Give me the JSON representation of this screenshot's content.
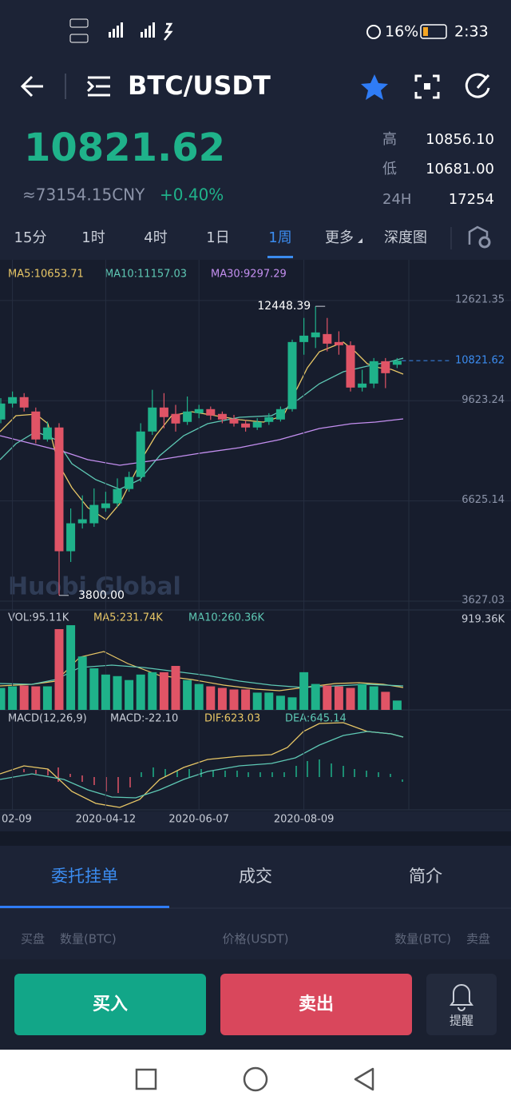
{
  "status_bar": {
    "battery": "16%",
    "time": "2:33"
  },
  "header": {
    "pair": "BTC/USDT"
  },
  "ticker": {
    "price": "10821.62",
    "cny": "≈73154.15CNY",
    "change": "+0.40%",
    "stats": [
      {
        "label": "高",
        "value": "10856.10"
      },
      {
        "label": "低",
        "value": "10681.00"
      },
      {
        "label": "24H",
        "value": "17254"
      }
    ]
  },
  "intervals": [
    "15分",
    "1时",
    "4时",
    "1日",
    "1周",
    "更多",
    "深度图"
  ],
  "active_interval": 4,
  "chart_data": {
    "type": "candlestick",
    "ma_legend": [
      "MA5:10653.71",
      "MA10:11157.03",
      "MA30:9297.29"
    ],
    "up_color": "#1fb28a",
    "down_color": "#e05466",
    "ylim": [
      3364,
      13839
    ],
    "yticks": [
      12621.35,
      9623.24,
      6625.14,
      3627.03
    ],
    "last_price": 10821.62,
    "annotations": [
      {
        "value": 12448.39,
        "label": "12448.39"
      },
      {
        "value": 3800,
        "label": "3800.00"
      }
    ],
    "watermark": "Huobi Global",
    "categories": [
      null,
      "02-09",
      null,
      null,
      null,
      null,
      null,
      null,
      null,
      "2020-04-12",
      null,
      null,
      null,
      null,
      null,
      null,
      null,
      "2020-06-07",
      null,
      null,
      null,
      null,
      null,
      null,
      null,
      null,
      "2020-08-09",
      null,
      null,
      null,
      null,
      null,
      null,
      null,
      null
    ],
    "open": [
      9062,
      9540,
      9731,
      9301,
      8464,
      8823,
      5121,
      5957,
      5957,
      6410,
      6553,
      6983,
      7342,
      8703,
      9420,
      9229,
      8990,
      9253,
      9372,
      9229,
      9086,
      8942,
      8823,
      8990,
      9062,
      9372,
      11379,
      11522,
      11618,
      11379,
      11284,
      10017,
      10137,
      10806,
      10700
    ],
    "high": [
      9700,
      9900,
      9850,
      9420,
      9000,
      8950,
      6400,
      6792,
      7000,
      6900,
      7300,
      7500,
      8950,
      9950,
      9850,
      9500,
      9750,
      9500,
      9450,
      9300,
      9200,
      9050,
      9100,
      9250,
      9450,
      11450,
      12100,
      12448.39,
      12100,
      11700,
      11400,
      10550,
      10900,
      10900,
      10900
    ],
    "low": [
      8950,
      9420,
      9300,
      8350,
      8400,
      3800,
      4800,
      5800,
      5850,
      6300,
      6450,
      6900,
      7200,
      8600,
      8800,
      8700,
      8900,
      9100,
      9050,
      8950,
      8850,
      8700,
      8750,
      8900,
      9000,
      9300,
      11000,
      11200,
      11100,
      11000,
      9900,
      9900,
      10000,
      10000,
      10600
    ],
    "close": [
      9540,
      9731,
      9420,
      8464,
      8823,
      5121,
      5957,
      6077,
      6506,
      6553,
      6983,
      7342,
      8703,
      9420,
      9133,
      8942,
      9301,
      9372,
      9181,
      9062,
      8942,
      8823,
      8990,
      9133,
      9372,
      11379,
      11570,
      11666,
      11331,
      11284,
      10017,
      10137,
      10806,
      10447,
      10821.62
    ],
    "volume": {
      "legend": [
        "VOL:95.11K",
        "MA5:231.74K",
        "MA10:260.36K"
      ],
      "ylim": [
        0,
        1002
      ],
      "yticks": [
        {
          "value": 919.36,
          "label": "919.36K"
        }
      ],
      "values": [
        224,
        240,
        248,
        240,
        240,
        823,
        863,
        544,
        424,
        360,
        344,
        304,
        360,
        384,
        384,
        448,
        304,
        264,
        240,
        224,
        208,
        208,
        176,
        176,
        144,
        128,
        384,
        264,
        248,
        240,
        224,
        264,
        240,
        184,
        95.11
      ]
    },
    "macd": {
      "legend": [
        "MACD(12,26,9)",
        "MACD:-22.10",
        "DIF:623.03",
        "DEA:645.14"
      ]
    }
  },
  "tabs": [
    "委托挂单",
    "成交",
    "简介"
  ],
  "active_tab": 0,
  "order_header": [
    "买盘",
    "数量(BTC)",
    "价格(USDT)",
    "数量(BTC)",
    "卖盘"
  ],
  "actions": {
    "buy": "买入",
    "sell": "卖出",
    "alert": "提醒"
  }
}
